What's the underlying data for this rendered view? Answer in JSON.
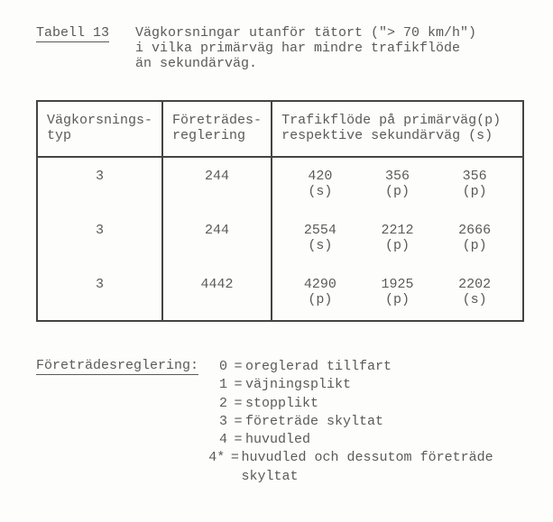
{
  "title": {
    "label": "Tabell 13",
    "caption_line1": "Vägkorsningar utanför tätort (\"> 70 km/h\")",
    "caption_line2": "i vilka primärväg har mindre trafikflöde",
    "caption_line3": "än sekundärväg."
  },
  "table": {
    "headers": {
      "col1_line1": "Vägkorsnings-",
      "col1_line2": "typ",
      "col2_line1": "Företrädes-",
      "col2_line2": "reglering",
      "col3_line1": "Trafikflöde på primärväg(p)",
      "col3_line2": "respektive sekundärväg (s)"
    },
    "rows": [
      {
        "type": "3",
        "reg": "244",
        "flows": [
          {
            "value": "420",
            "label": "(s)"
          },
          {
            "value": "356",
            "label": "(p)"
          },
          {
            "value": "356",
            "label": "(p)"
          }
        ]
      },
      {
        "type": "3",
        "reg": "244",
        "flows": [
          {
            "value": "2554",
            "label": "(s)"
          },
          {
            "value": "2212",
            "label": "(p)"
          },
          {
            "value": "2666",
            "label": "(p)"
          }
        ]
      },
      {
        "type": "3",
        "reg": "4442",
        "flows": [
          {
            "value": "4290",
            "label": "(p)"
          },
          {
            "value": "1925",
            "label": "(p)"
          },
          {
            "value": "2202",
            "label": "(s)"
          }
        ]
      }
    ]
  },
  "legend": {
    "label": "Företrädesreglering:",
    "items": [
      {
        "code": "0",
        "text": "oreglerad tillfart"
      },
      {
        "code": "1",
        "text": "väjningsplikt"
      },
      {
        "code": "2",
        "text": "stopplikt"
      },
      {
        "code": "3",
        "text": "företräde skyltat"
      },
      {
        "code": "4",
        "text": "huvudled"
      },
      {
        "code": "4*",
        "text": "huvudled och dessutom företräde skyltat"
      }
    ]
  },
  "style": {
    "font": "Courier New",
    "text_color": "#5a5a5a",
    "background_color": "#fdfdfb",
    "border_color": "#444444"
  }
}
